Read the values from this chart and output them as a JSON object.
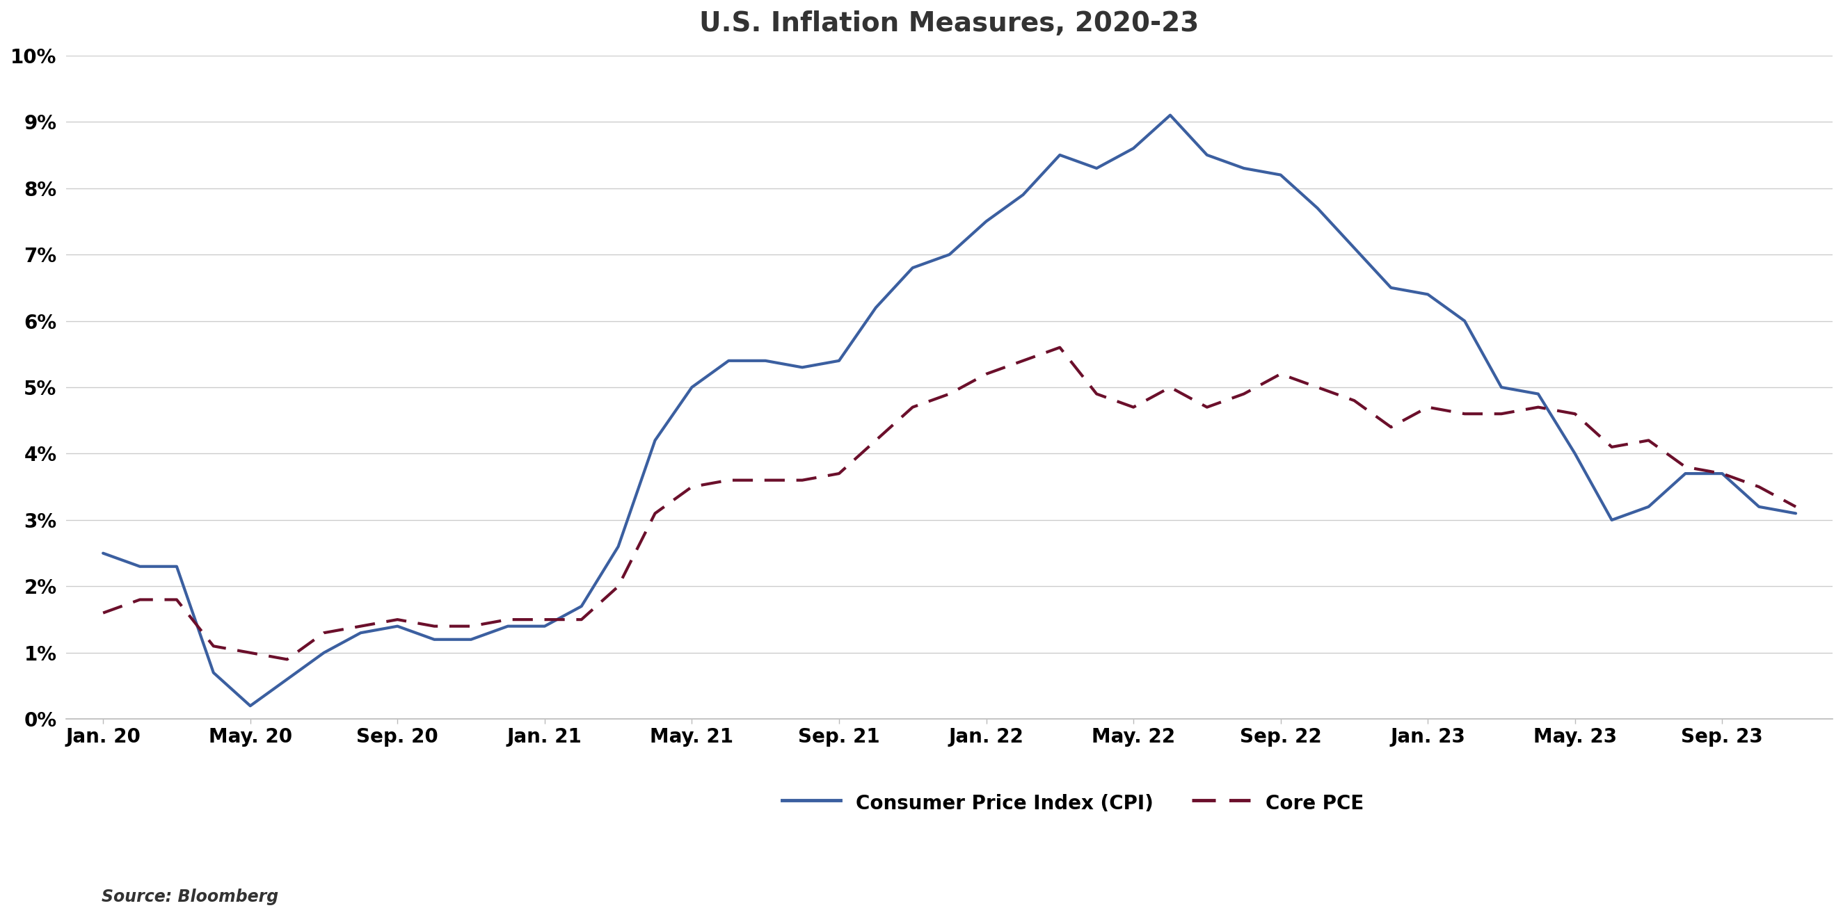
{
  "title": "U.S. Inflation Measures, 2020-23",
  "source": "Source: Bloomberg",
  "cpi_label": "Consumer Price Index (CPI)",
  "pce_label": "Core PCE",
  "cpi_color": "#3B5FA0",
  "pce_color": "#6B0F2B",
  "background_color": "#FFFFFF",
  "border_color": "#BBBBBB",
  "ylim": [
    0,
    10
  ],
  "yticks": [
    0,
    1,
    2,
    3,
    4,
    5,
    6,
    7,
    8,
    9,
    10
  ],
  "xtick_labels": [
    "Jan. 20",
    "May. 20",
    "Sep. 20",
    "Jan. 21",
    "May. 21",
    "Sep. 21",
    "Jan. 22",
    "May. 22",
    "Sep. 22",
    "Jan. 23",
    "May. 23",
    "Sep. 23"
  ],
  "grid_color": "#CCCCCC",
  "title_fontsize": 28,
  "tick_fontsize": 20,
  "legend_fontsize": 20,
  "source_fontsize": 17,
  "cpi_linewidth": 3.0,
  "pce_linewidth": 3.0,
  "cpi_data": [
    [
      0,
      2.5
    ],
    [
      1,
      2.3
    ],
    [
      2,
      2.3
    ],
    [
      3,
      0.7
    ],
    [
      4,
      0.2
    ],
    [
      5,
      0.6
    ],
    [
      6,
      1.0
    ],
    [
      7,
      1.3
    ],
    [
      8,
      1.4
    ],
    [
      9,
      1.2
    ],
    [
      10,
      1.2
    ],
    [
      11,
      1.4
    ],
    [
      12,
      1.4
    ],
    [
      13,
      1.7
    ],
    [
      14,
      2.6
    ],
    [
      15,
      4.2
    ],
    [
      16,
      5.0
    ],
    [
      17,
      5.4
    ],
    [
      18,
      5.4
    ],
    [
      19,
      5.3
    ],
    [
      20,
      5.4
    ],
    [
      21,
      6.2
    ],
    [
      22,
      6.8
    ],
    [
      23,
      7.0
    ],
    [
      24,
      7.5
    ],
    [
      25,
      7.9
    ],
    [
      26,
      8.5
    ],
    [
      27,
      8.3
    ],
    [
      28,
      8.6
    ],
    [
      29,
      9.1
    ],
    [
      30,
      8.5
    ],
    [
      31,
      8.3
    ],
    [
      32,
      8.2
    ],
    [
      33,
      7.7
    ],
    [
      34,
      7.1
    ],
    [
      35,
      6.5
    ],
    [
      36,
      6.4
    ],
    [
      37,
      6.0
    ],
    [
      38,
      5.0
    ],
    [
      39,
      4.9
    ],
    [
      40,
      4.0
    ],
    [
      41,
      3.0
    ],
    [
      42,
      3.2
    ],
    [
      43,
      3.7
    ],
    [
      44,
      3.7
    ],
    [
      45,
      3.2
    ],
    [
      46,
      3.1
    ]
  ],
  "pce_data": [
    [
      0,
      1.6
    ],
    [
      1,
      1.8
    ],
    [
      2,
      1.8
    ],
    [
      3,
      1.1
    ],
    [
      4,
      1.0
    ],
    [
      5,
      0.9
    ],
    [
      6,
      1.3
    ],
    [
      7,
      1.4
    ],
    [
      8,
      1.5
    ],
    [
      9,
      1.4
    ],
    [
      10,
      1.4
    ],
    [
      11,
      1.5
    ],
    [
      12,
      1.5
    ],
    [
      13,
      1.5
    ],
    [
      14,
      2.0
    ],
    [
      15,
      3.1
    ],
    [
      16,
      3.5
    ],
    [
      17,
      3.6
    ],
    [
      18,
      3.6
    ],
    [
      19,
      3.6
    ],
    [
      20,
      3.7
    ],
    [
      21,
      4.2
    ],
    [
      22,
      4.7
    ],
    [
      23,
      4.9
    ],
    [
      24,
      5.2
    ],
    [
      25,
      5.4
    ],
    [
      26,
      5.6
    ],
    [
      27,
      4.9
    ],
    [
      28,
      4.7
    ],
    [
      29,
      5.0
    ],
    [
      30,
      4.7
    ],
    [
      31,
      4.9
    ],
    [
      32,
      5.2
    ],
    [
      33,
      5.0
    ],
    [
      34,
      4.8
    ],
    [
      35,
      4.4
    ],
    [
      36,
      4.7
    ],
    [
      37,
      4.6
    ],
    [
      38,
      4.6
    ],
    [
      39,
      4.7
    ],
    [
      40,
      4.6
    ],
    [
      41,
      4.1
    ],
    [
      42,
      4.2
    ],
    [
      43,
      3.8
    ],
    [
      44,
      3.7
    ],
    [
      45,
      3.5
    ],
    [
      46,
      3.2
    ]
  ],
  "tick_positions": [
    0,
    4,
    8,
    12,
    16,
    20,
    24,
    28,
    32,
    36,
    40,
    44
  ],
  "xlim": [
    -1,
    47
  ]
}
